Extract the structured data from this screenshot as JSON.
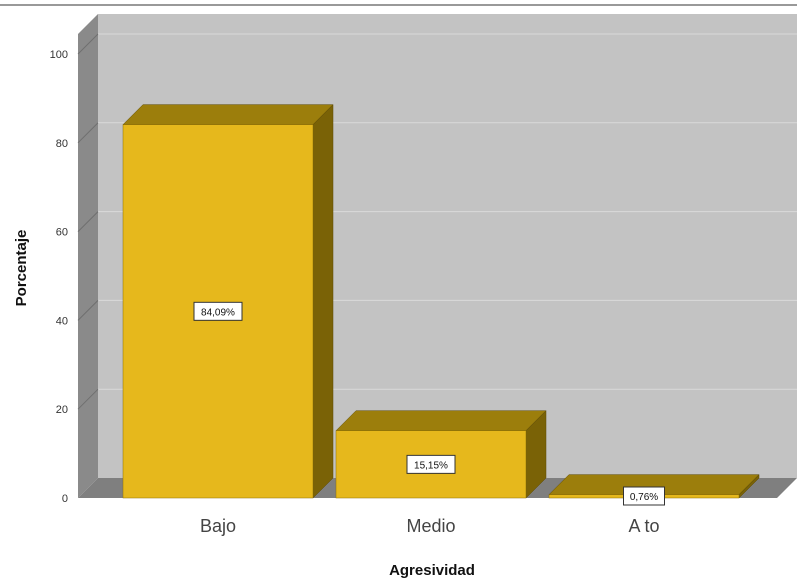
{
  "chart_data": {
    "type": "bar",
    "categories": [
      "Bajo",
      "Medio",
      "Alto"
    ],
    "category_labels": [
      "Bajo",
      "Medio",
      "A to"
    ],
    "values": [
      84.09,
      15.15,
      0.76
    ],
    "data_labels": [
      "84,09%",
      "15,15%",
      "0,76%"
    ],
    "title": "",
    "xlabel": "Agresividad",
    "ylabel": "Porcentaje",
    "ylim": [
      0,
      100
    ],
    "yticks": [
      0,
      20,
      40,
      60,
      80,
      100
    ],
    "grid": true,
    "three_d": true,
    "colors": {
      "bar_front": "#e6b81c",
      "bar_top": "#9c7e0c",
      "bar_side": "#7a6206",
      "back_wall": "#c3c3c3",
      "left_wall": "#8a8a8a",
      "floor": "#7f7f7f",
      "gridline": "#dadada"
    }
  }
}
